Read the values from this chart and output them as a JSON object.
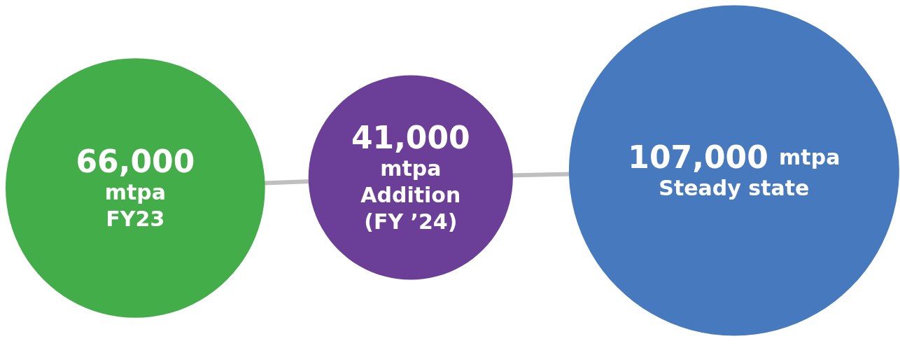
{
  "chart_data": {
    "type": "other",
    "categories": [
      "FY23",
      "Addition (FY ’24)",
      "Steady state"
    ],
    "values": [
      66000,
      41000,
      107000
    ],
    "value_labels": [
      "66,000 mtpa",
      "41,000 mtpa",
      "107,000 mtpa"
    ],
    "colors": [
      "#43ad49",
      "#6b3f98",
      "#4679bd"
    ]
  }
}
